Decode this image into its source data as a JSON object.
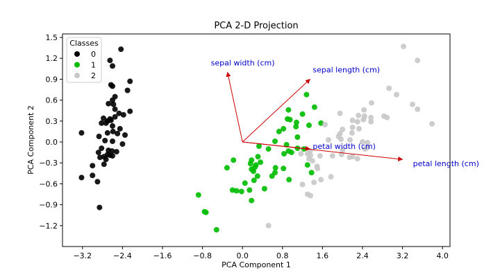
{
  "chart_data": {
    "type": "scatter",
    "title": "PCA 2-D Projection",
    "xlabel": "PCA Component 1",
    "ylabel": "PCA Component 2",
    "xlim": [
      -3.6,
      4.15
    ],
    "ylim": [
      -1.5,
      1.55
    ],
    "xticks": [
      -3.2,
      -2.4,
      -1.6,
      -0.8,
      0.0,
      0.8,
      1.6,
      2.4,
      3.2,
      4.0
    ],
    "xtick_labels": [
      "−3.2",
      "−2.4",
      "−1.6",
      "−0.8",
      "0.0",
      "0.8",
      "1.6",
      "2.4",
      "3.2",
      "4.0"
    ],
    "yticks": [
      1.5,
      1.2,
      0.9,
      0.6,
      0.3,
      0.0,
      -0.3,
      -0.6,
      -0.9,
      -1.2
    ],
    "ytick_labels": [
      "1.5",
      "1.2",
      "0.9",
      "0.6",
      "0.3",
      "0.0",
      "−0.3",
      "−0.6",
      "−0.9",
      "−1.2"
    ],
    "legend": {
      "title": "Classes",
      "position": "upper-left",
      "entries": [
        {
          "label": "0",
          "color": "#000000"
        },
        {
          "label": "1",
          "color": "#00bb00"
        },
        {
          "label": "2",
          "color": "#c8c8c8"
        }
      ]
    },
    "series": [
      {
        "name": "0",
        "color": "#000000",
        "points": [
          [
            -2.43,
            1.33
          ],
          [
            -2.65,
            1.17
          ],
          [
            -2.6,
            1.09
          ],
          [
            -2.25,
            0.87
          ],
          [
            -2.63,
            0.82
          ],
          [
            -2.6,
            0.8
          ],
          [
            -2.3,
            0.74
          ],
          [
            -2.55,
            0.65
          ],
          [
            -2.6,
            0.6
          ],
          [
            -2.68,
            0.55
          ],
          [
            -2.58,
            0.54
          ],
          [
            -2.55,
            0.47
          ],
          [
            -2.47,
            0.41
          ],
          [
            -2.25,
            0.44
          ],
          [
            -2.38,
            0.39
          ],
          [
            -2.55,
            0.36
          ],
          [
            -2.65,
            0.33
          ],
          [
            -2.78,
            0.34
          ],
          [
            -2.7,
            0.3
          ],
          [
            -2.63,
            0.31
          ],
          [
            -2.82,
            0.27
          ],
          [
            -2.73,
            0.27
          ],
          [
            -2.6,
            0.23
          ],
          [
            -2.45,
            0.19
          ],
          [
            -2.59,
            0.15
          ],
          [
            -2.7,
            0.13
          ],
          [
            -2.5,
            0.12
          ],
          [
            -2.35,
            0.1
          ],
          [
            -3.22,
            0.13
          ],
          [
            -2.87,
            0.08
          ],
          [
            -2.6,
            0.01
          ],
          [
            -2.75,
            0.02
          ],
          [
            -2.4,
            -0.03
          ],
          [
            -2.82,
            -0.09
          ],
          [
            -2.68,
            -0.12
          ],
          [
            -2.61,
            -0.13
          ],
          [
            -2.52,
            -0.14
          ],
          [
            -2.88,
            -0.15
          ],
          [
            -2.7,
            -0.18
          ],
          [
            -2.65,
            -0.19
          ],
          [
            -2.85,
            -0.22
          ],
          [
            -2.6,
            -0.2
          ],
          [
            -2.73,
            -0.25
          ],
          [
            -2.77,
            -0.21
          ],
          [
            -3.0,
            -0.34
          ],
          [
            -2.77,
            -0.32
          ],
          [
            -3.22,
            -0.51
          ],
          [
            -3.0,
            -0.48
          ],
          [
            -2.9,
            -0.57
          ],
          [
            -2.86,
            -0.94
          ]
        ]
      },
      {
        "name": "1",
        "color": "#00bb00",
        "points": [
          [
            1.28,
            0.68
          ],
          [
            1.44,
            0.5
          ],
          [
            0.92,
            0.46
          ],
          [
            1.2,
            0.4
          ],
          [
            0.9,
            0.33
          ],
          [
            0.95,
            0.32
          ],
          [
            1.08,
            0.28
          ],
          [
            1.57,
            0.27
          ],
          [
            1.33,
            0.24
          ],
          [
            1.07,
            0.22
          ],
          [
            0.82,
            0.19
          ],
          [
            0.73,
            0.15
          ],
          [
            1.1,
            0.07
          ],
          [
            0.65,
            0.01
          ],
          [
            0.88,
            -0.04
          ],
          [
            0.33,
            -0.06
          ],
          [
            0.52,
            -0.1
          ],
          [
            1.1,
            -0.09
          ],
          [
            1.23,
            -0.1
          ],
          [
            0.92,
            -0.13
          ],
          [
            0.98,
            -0.15
          ],
          [
            0.83,
            -0.17
          ],
          [
            0.31,
            -0.21
          ],
          [
            0.18,
            -0.26
          ],
          [
            -0.18,
            -0.26
          ],
          [
            0.36,
            -0.29
          ],
          [
            0.16,
            -0.31
          ],
          [
            0.27,
            -0.33
          ],
          [
            1.3,
            -0.33
          ],
          [
            -0.31,
            -0.37
          ],
          [
            0.25,
            -0.36
          ],
          [
            0.18,
            -0.39
          ],
          [
            0.66,
            -0.37
          ],
          [
            0.82,
            -0.38
          ],
          [
            0.65,
            -0.44
          ],
          [
            1.38,
            -0.44
          ],
          [
            0.22,
            -0.42
          ],
          [
            0.3,
            -0.49
          ],
          [
            0.59,
            -0.49
          ],
          [
            0.93,
            -0.54
          ],
          [
            0.23,
            -0.55
          ],
          [
            0.05,
            -0.59
          ],
          [
            0.44,
            -0.67
          ],
          [
            -0.2,
            -0.69
          ],
          [
            -0.12,
            -0.7
          ],
          [
            0.14,
            -0.69
          ],
          [
            -0.02,
            -0.71
          ],
          [
            -0.88,
            -0.76
          ],
          [
            0.18,
            -0.84
          ],
          [
            -0.76,
            -1.0
          ],
          [
            -0.73,
            -1.01
          ],
          [
            -0.52,
            -1.26
          ]
        ]
      },
      {
        "name": "2",
        "color": "#c8c8c8",
        "points": [
          [
            3.22,
            1.37
          ],
          [
            3.5,
            1.17
          ],
          [
            2.93,
            0.77
          ],
          [
            3.08,
            0.68
          ],
          [
            2.58,
            0.56
          ],
          [
            3.4,
            0.54
          ],
          [
            3.5,
            0.47
          ],
          [
            2.43,
            0.46
          ],
          [
            2.32,
            0.38
          ],
          [
            1.95,
            0.41
          ],
          [
            2.3,
            0.29
          ],
          [
            2.44,
            0.37
          ],
          [
            2.83,
            0.37
          ],
          [
            2.57,
            0.35
          ],
          [
            2.89,
            0.35
          ],
          [
            2.57,
            0.29
          ],
          [
            2.42,
            0.32
          ],
          [
            2.2,
            0.31
          ],
          [
            1.65,
            0.25
          ],
          [
            3.79,
            0.26
          ],
          [
            2.0,
            0.18
          ],
          [
            2.2,
            0.21
          ],
          [
            2.33,
            0.19
          ],
          [
            2.19,
            0.13
          ],
          [
            1.95,
            0.12
          ],
          [
            1.92,
            0.08
          ],
          [
            1.97,
            0.04
          ],
          [
            1.72,
            0.03
          ],
          [
            2.15,
            0.03
          ],
          [
            2.4,
            0.0
          ],
          [
            2.5,
            -0.01
          ],
          [
            2.5,
            -0.08
          ],
          [
            2.45,
            -0.1
          ],
          [
            2.0,
            -0.12
          ],
          [
            1.35,
            -0.13
          ],
          [
            1.3,
            -0.17
          ],
          [
            1.36,
            -0.19
          ],
          [
            1.8,
            -0.2
          ],
          [
            1.55,
            -0.2
          ],
          [
            1.17,
            -0.17
          ],
          [
            2.2,
            -0.21
          ],
          [
            1.98,
            -0.18
          ],
          [
            2.14,
            -0.22
          ],
          [
            2.3,
            -0.24
          ],
          [
            1.33,
            -0.24
          ],
          [
            1.4,
            -0.27
          ],
          [
            1.49,
            -0.35
          ],
          [
            1.5,
            -0.38
          ],
          [
            1.77,
            -0.5
          ],
          [
            1.57,
            -0.54
          ],
          [
            1.43,
            -0.58
          ],
          [
            1.2,
            -0.61
          ],
          [
            1.3,
            -0.75
          ],
          [
            1.36,
            -0.77
          ],
          [
            0.52,
            -1.2
          ]
        ]
      }
    ],
    "arrows": [
      {
        "label": "sepal width (cm)",
        "end": [
          -0.3,
          1.0
        ],
        "color": "#cc0000",
        "text_color": "#0000cc"
      },
      {
        "label": "sepal length (cm)",
        "end": [
          1.35,
          0.9
        ],
        "color": "#cc0000",
        "text_color": "#0000cc"
      },
      {
        "label": "petal width (cm)",
        "end": [
          1.35,
          -0.1
        ],
        "color": "#cc0000",
        "text_color": "#0000cc"
      },
      {
        "label": "petal length (cm)",
        "end": [
          3.2,
          -0.25
        ],
        "color": "#cc0000",
        "text_color": "#0000cc"
      }
    ]
  }
}
